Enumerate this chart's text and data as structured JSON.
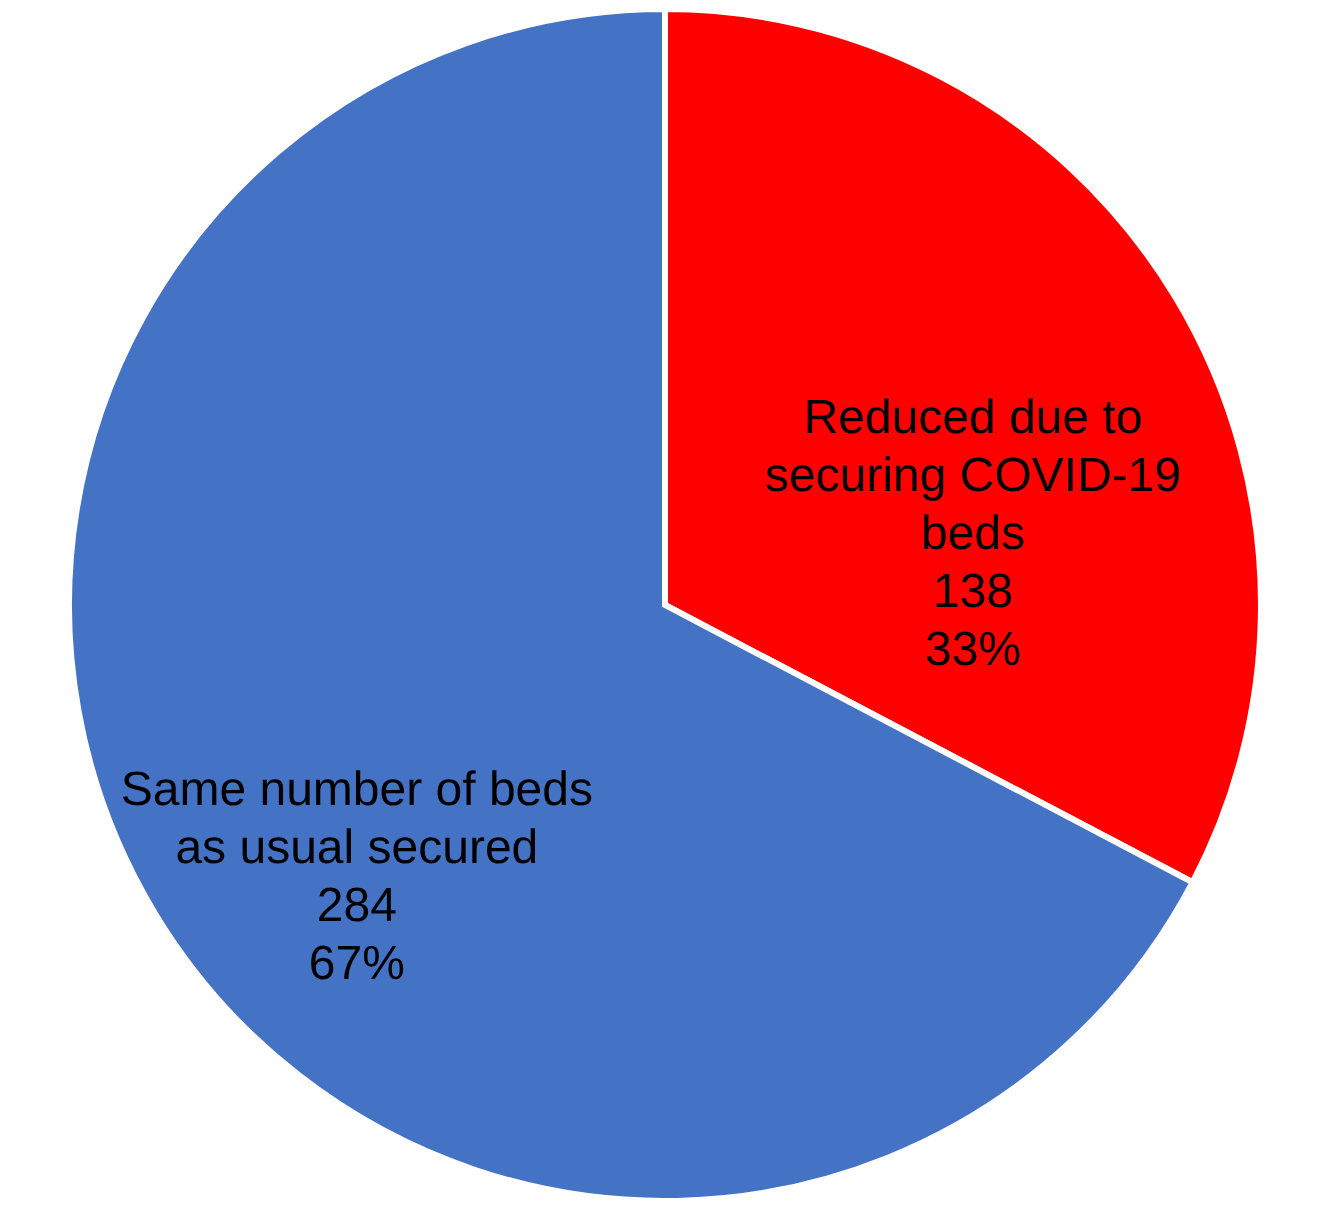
{
  "chart_data": {
    "type": "pie",
    "categories": [
      "Reduced due to securing COVID-19 beds",
      "Same number of beds as usual secured"
    ],
    "values": [
      138,
      284
    ],
    "colors": [
      "#ff0000",
      "#4472c4"
    ],
    "value_labels": [
      "138\n33%",
      "284\n67%"
    ],
    "legend": false
  }
}
